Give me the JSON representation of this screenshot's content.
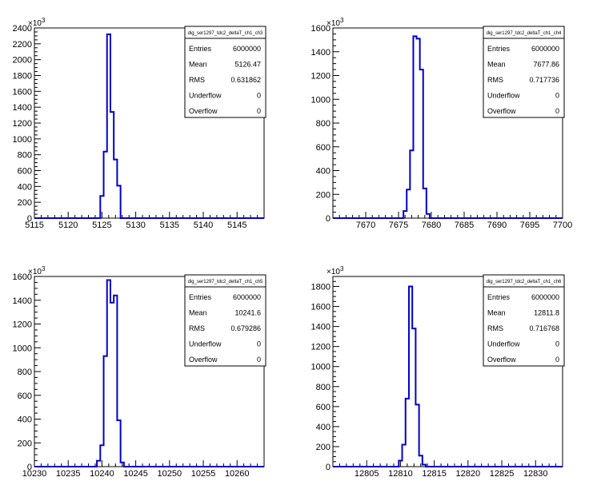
{
  "chart_data": [
    {
      "type": "histogram",
      "title": "dig_ser1297_tdc2_deltaT_ch1_ch3",
      "y_multiplier": "×10^3",
      "xlim": [
        5115,
        5149
      ],
      "ylim": [
        0,
        2400
      ],
      "x_ticks": [
        5115,
        5120,
        5125,
        5130,
        5135,
        5140,
        5145
      ],
      "y_ticks": [
        0,
        200,
        400,
        600,
        800,
        1000,
        1200,
        1400,
        1600,
        1800,
        2000,
        2200,
        2400
      ],
      "line_color": "#0000cc",
      "bins": [
        {
          "x0": 5124.75,
          "x1": 5125.25,
          "y": 280
        },
        {
          "x0": 5125.25,
          "x1": 5125.75,
          "y": 840
        },
        {
          "x0": 5125.75,
          "x1": 5126.25,
          "y": 2320
        },
        {
          "x0": 5126.25,
          "x1": 5126.75,
          "y": 1340
        },
        {
          "x0": 5126.75,
          "x1": 5127.25,
          "y": 740
        },
        {
          "x0": 5127.25,
          "x1": 5127.75,
          "y": 410
        }
      ],
      "stats": {
        "title": "dig_ser1297_tdc2_deltaT_ch1_ch3",
        "rows": [
          {
            "label": "Entries",
            "value": "6000000"
          },
          {
            "label": "Mean",
            "value": "5126.47"
          },
          {
            "label": "RMS",
            "value": "0.631862"
          },
          {
            "label": "Underflow",
            "value": "0"
          },
          {
            "label": "Overflow",
            "value": "0"
          }
        ]
      }
    },
    {
      "type": "histogram",
      "title": "dig_ser1297_tdc2_deltaT_ch1_ch4",
      "y_multiplier": "×10^3",
      "xlim": [
        7665,
        7700
      ],
      "ylim": [
        0,
        1600
      ],
      "x_ticks": [
        7670,
        7675,
        7680,
        7685,
        7690,
        7695,
        7700
      ],
      "y_ticks": [
        0,
        200,
        400,
        600,
        800,
        1000,
        1200,
        1400,
        1600
      ],
      "line_color": "#0000cc",
      "bins": [
        {
          "x0": 7675.75,
          "x1": 7676.25,
          "y": 60
        },
        {
          "x0": 7676.25,
          "x1": 7676.75,
          "y": 240
        },
        {
          "x0": 7676.75,
          "x1": 7677.25,
          "y": 570
        },
        {
          "x0": 7677.25,
          "x1": 7677.75,
          "y": 1530
        },
        {
          "x0": 7677.75,
          "x1": 7678.25,
          "y": 1510
        },
        {
          "x0": 7678.25,
          "x1": 7678.75,
          "y": 1250
        },
        {
          "x0": 7678.75,
          "x1": 7679.25,
          "y": 250
        },
        {
          "x0": 7679.25,
          "x1": 7679.75,
          "y": 35
        }
      ],
      "stats": {
        "title": "dig_ser1297_tdc2_deltaT_ch1_ch4",
        "rows": [
          {
            "label": "Entries",
            "value": "6000000"
          },
          {
            "label": "Mean",
            "value": "7677.86"
          },
          {
            "label": "RMS",
            "value": "0.717736"
          },
          {
            "label": "Underflow",
            "value": "0"
          },
          {
            "label": "Overflow",
            "value": "0"
          }
        ]
      }
    },
    {
      "type": "histogram",
      "title": "dig_ser1297_tdc2_deltaT_ch1_ch5",
      "y_multiplier": "×10^3",
      "xlim": [
        10230,
        10264
      ],
      "ylim": [
        0,
        1600
      ],
      "x_ticks": [
        10230,
        10235,
        10240,
        10245,
        10250,
        10255,
        10260
      ],
      "y_ticks": [
        0,
        200,
        400,
        600,
        800,
        1000,
        1200,
        1400,
        1600
      ],
      "line_color": "#0000cc",
      "bins": [
        {
          "x0": 10239.25,
          "x1": 10239.75,
          "y": 50
        },
        {
          "x0": 10239.75,
          "x1": 10240.25,
          "y": 180
        },
        {
          "x0": 10240.25,
          "x1": 10240.75,
          "y": 930
        },
        {
          "x0": 10240.75,
          "x1": 10241.25,
          "y": 1570
        },
        {
          "x0": 10241.25,
          "x1": 10241.75,
          "y": 1380
        },
        {
          "x0": 10241.75,
          "x1": 10242.25,
          "y": 1440
        },
        {
          "x0": 10242.25,
          "x1": 10242.75,
          "y": 390
        },
        {
          "x0": 10242.75,
          "x1": 10243.25,
          "y": 35
        }
      ],
      "stats": {
        "title": "dig_ser1297_tdc2_deltaT_ch1_ch5",
        "rows": [
          {
            "label": "Entries",
            "value": "6000000"
          },
          {
            "label": "Mean",
            "value": "10241.6"
          },
          {
            "label": "RMS",
            "value": "0.679286"
          },
          {
            "label": "Underflow",
            "value": "0"
          },
          {
            "label": "Overflow",
            "value": "0"
          }
        ]
      }
    },
    {
      "type": "histogram",
      "title": "dig_ser1297_tdc2_deltaT_ch1_ch6",
      "y_multiplier": "×10^3",
      "xlim": [
        12800,
        12834
      ],
      "ylim": [
        0,
        1900
      ],
      "x_ticks": [
        12805,
        12810,
        12815,
        12820,
        12825,
        12830
      ],
      "y_ticks": [
        0,
        200,
        400,
        600,
        800,
        1000,
        1200,
        1400,
        1600,
        1800
      ],
      "line_color": "#0000cc",
      "bins": [
        {
          "x0": 12809.75,
          "x1": 12810.25,
          "y": 60
        },
        {
          "x0": 12810.25,
          "x1": 12810.75,
          "y": 220
        },
        {
          "x0": 12810.75,
          "x1": 12811.25,
          "y": 680
        },
        {
          "x0": 12811.25,
          "x1": 12811.75,
          "y": 1800
        },
        {
          "x0": 12811.75,
          "x1": 12812.25,
          "y": 1380
        },
        {
          "x0": 12812.25,
          "x1": 12812.75,
          "y": 620
        },
        {
          "x0": 12812.75,
          "x1": 12813.25,
          "y": 110
        },
        {
          "x0": 12813.25,
          "x1": 12813.75,
          "y": 20
        }
      ],
      "stats": {
        "title": "dig_ser1297_tdc2_deltaT_ch1_ch6",
        "rows": [
          {
            "label": "Entries",
            "value": "6000000"
          },
          {
            "label": "Mean",
            "value": "12811.8"
          },
          {
            "label": "RMS",
            "value": "0.716768"
          },
          {
            "label": "Underflow",
            "value": "0"
          },
          {
            "label": "Overflow",
            "value": "0"
          }
        ]
      }
    }
  ]
}
